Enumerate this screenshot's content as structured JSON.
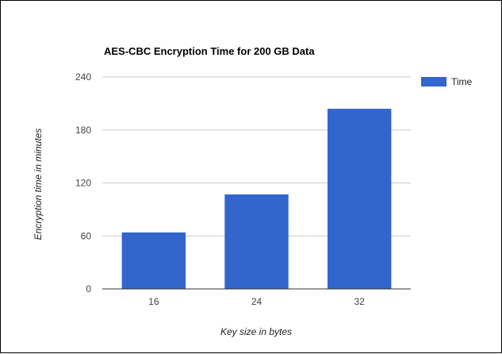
{
  "chart_data": {
    "type": "bar",
    "title": "AES-CBC Encryption Time for 200 GB Data",
    "xlabel": "Key size in bytes",
    "ylabel": "Encryption time in minutes",
    "categories": [
      "16",
      "24",
      "32"
    ],
    "series": [
      {
        "name": "Time",
        "values": [
          64,
          107,
          204
        ],
        "color": "#3366cc"
      }
    ],
    "ylim": [
      0,
      240
    ],
    "yticks": [
      "0",
      "60",
      "120",
      "180",
      "240"
    ],
    "grid": true,
    "legend_position": "right"
  }
}
